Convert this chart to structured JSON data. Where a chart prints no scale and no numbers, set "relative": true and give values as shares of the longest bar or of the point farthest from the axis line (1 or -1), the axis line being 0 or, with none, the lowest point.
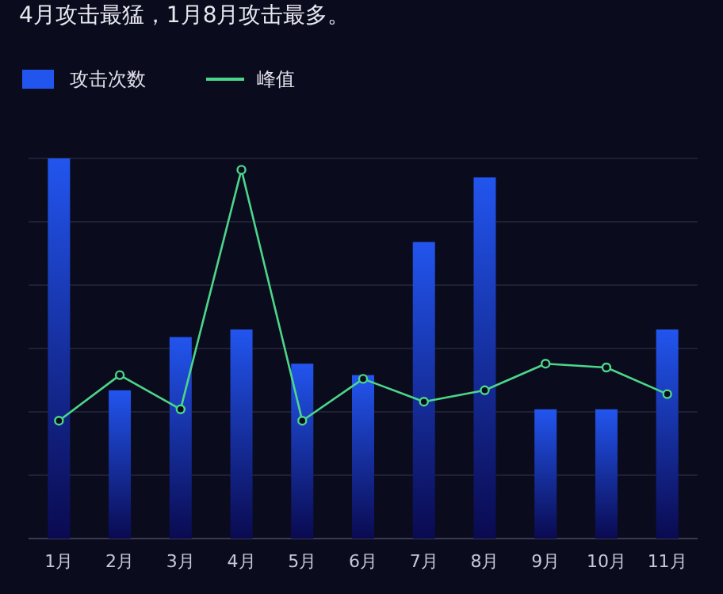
{
  "chart_data": {
    "type": "bar",
    "title": "4月攻击最猛，1月8月攻击最多。",
    "categories": [
      "1月",
      "2月",
      "3月",
      "4月",
      "5月",
      "6月",
      "7月",
      "8月",
      "9月",
      "10月",
      "11月"
    ],
    "relative": true,
    "grid": "y",
    "legend": "top left",
    "series": [
      {
        "name": "攻击次数",
        "color": "#2255ee",
        "values": [
          1.0,
          0.39,
          0.53,
          0.55,
          0.46,
          0.43,
          0.78,
          0.95,
          0.34,
          0.34,
          0.55
        ]
      },
      {
        "name": "峰值",
        "type": "line",
        "color": "#4cd68a",
        "marker": "circle",
        "values": [
          0.31,
          0.43,
          0.34,
          0.97,
          0.31,
          0.42,
          0.36,
          0.39,
          0.46,
          0.45,
          0.38
        ]
      }
    ]
  }
}
